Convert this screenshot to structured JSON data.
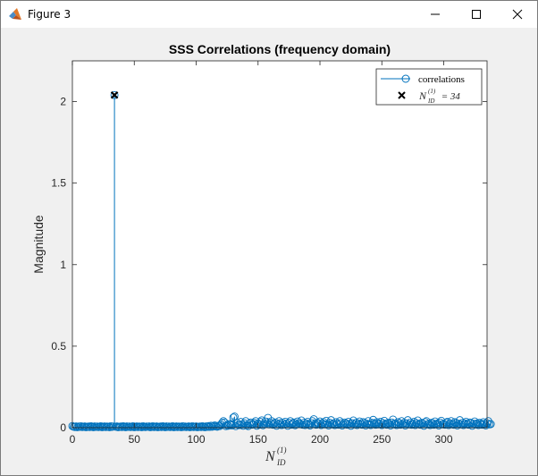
{
  "window": {
    "title": "Figure 3"
  },
  "colors": {
    "series": "#0072BD",
    "marker": "#000000",
    "axes_bg": "#ffffff",
    "figure_bg": "#f0f0f0"
  },
  "chart_data": {
    "type": "stem",
    "title": "SSS Correlations (frequency domain)",
    "ylabel": "Magnitude",
    "xlabel": {
      "base": "N",
      "sub": "ID",
      "sup": "(1)"
    },
    "xlim": [
      0,
      335
    ],
    "ylim": [
      0,
      2.25
    ],
    "xticks": [
      0,
      50,
      100,
      150,
      200,
      250,
      300
    ],
    "yticks": [
      0,
      0.5,
      1,
      1.5,
      2
    ],
    "ytick_labels": [
      "0",
      "0.5",
      "1",
      "1.5",
      "2"
    ],
    "grid": false,
    "legend_position": "top-right",
    "series": [
      {
        "name": "correlations",
        "style": "stem with open circle markers",
        "x_start": 0,
        "x_step": 1,
        "values": [
          0.01,
          0.006,
          0.004,
          0.008,
          0.003,
          0.007,
          0.005,
          0.009,
          0.004,
          0.006,
          0.008,
          0.003,
          0.005,
          0.007,
          0.004,
          0.009,
          0.006,
          0.003,
          0.008,
          0.005,
          0.007,
          0.004,
          0.006,
          0.009,
          0.003,
          0.005,
          0.008,
          0.004,
          0.007,
          0.006,
          0.003,
          0.009,
          0.005,
          0.007,
          2.04,
          0.006,
          0.008,
          0.003,
          0.005,
          0.007,
          0.004,
          0.009,
          0.006,
          0.003,
          0.008,
          0.005,
          0.007,
          0.004,
          0.006,
          0.009,
          0.003,
          0.005,
          0.008,
          0.004,
          0.007,
          0.006,
          0.003,
          0.009,
          0.005,
          0.004,
          0.007,
          0.006,
          0.008,
          0.003,
          0.005,
          0.009,
          0.004,
          0.006,
          0.008,
          0.003,
          0.005,
          0.007,
          0.004,
          0.009,
          0.006,
          0.003,
          0.008,
          0.005,
          0.007,
          0.004,
          0.006,
          0.009,
          0.003,
          0.005,
          0.008,
          0.004,
          0.007,
          0.006,
          0.003,
          0.009,
          0.005,
          0.007,
          0.004,
          0.006,
          0.008,
          0.003,
          0.005,
          0.009,
          0.004,
          0.006,
          0.008,
          0.003,
          0.005,
          0.007,
          0.004,
          0.009,
          0.006,
          0.003,
          0.008,
          0.005,
          0.01,
          0.005,
          0.012,
          0.006,
          0.009,
          0.014,
          0.008,
          0.006,
          0.012,
          0.01,
          0.018,
          0.03,
          0.04,
          0.032,
          0.01,
          0.016,
          0.012,
          0.022,
          0.018,
          0.014,
          0.062,
          0.068,
          0.01,
          0.03,
          0.018,
          0.016,
          0.035,
          0.02,
          0.012,
          0.028,
          0.04,
          0.015,
          0.01,
          0.025,
          0.032,
          0.018,
          0.022,
          0.03,
          0.04,
          0.012,
          0.026,
          0.018,
          0.035,
          0.045,
          0.015,
          0.022,
          0.038,
          0.028,
          0.06,
          0.02,
          0.03,
          0.04,
          0.018,
          0.025,
          0.032,
          0.012,
          0.022,
          0.04,
          0.028,
          0.016,
          0.03,
          0.02,
          0.036,
          0.024,
          0.012,
          0.03,
          0.04,
          0.018,
          0.026,
          0.032,
          0.015,
          0.02,
          0.038,
          0.028,
          0.022,
          0.044,
          0.018,
          0.03,
          0.016,
          0.026,
          0.036,
          0.02,
          0.014,
          0.028,
          0.04,
          0.052,
          0.022,
          0.018,
          0.03,
          0.024,
          0.038,
          0.016,
          0.026,
          0.034,
          0.02,
          0.042,
          0.022,
          0.014,
          0.03,
          0.046,
          0.02,
          0.026,
          0.016,
          0.034,
          0.024,
          0.018,
          0.04,
          0.028,
          0.014,
          0.022,
          0.032,
          0.026,
          0.018,
          0.036,
          0.024,
          0.012,
          0.028,
          0.044,
          0.02,
          0.03,
          0.016,
          0.026,
          0.038,
          0.022,
          0.018,
          0.034,
          0.028,
          0.014,
          0.024,
          0.04,
          0.022,
          0.016,
          0.03,
          0.048,
          0.026,
          0.018,
          0.034,
          0.02,
          0.024,
          0.036,
          0.016,
          0.028,
          0.042,
          0.022,
          0.018,
          0.03,
          0.026,
          0.014,
          0.032,
          0.05,
          0.02,
          0.024,
          0.016,
          0.034,
          0.028,
          0.018,
          0.04,
          0.022,
          0.03,
          0.014,
          0.026,
          0.046,
          0.02,
          0.032,
          0.018,
          0.024,
          0.036,
          0.016,
          0.028,
          0.044,
          0.022,
          0.018,
          0.03,
          0.026,
          0.012,
          0.034,
          0.04,
          0.02,
          0.024,
          0.016,
          0.03,
          0.028,
          0.018,
          0.038,
          0.022,
          0.026,
          0.014,
          0.032,
          0.042,
          0.02,
          0.024,
          0.018,
          0.03,
          0.036,
          0.016,
          0.026,
          0.04,
          0.022,
          0.018,
          0.034,
          0.028,
          0.014,
          0.024,
          0.046,
          0.02,
          0.03,
          0.016,
          0.026,
          0.036,
          0.022,
          0.018,
          0.032,
          0.028,
          0.012,
          0.024,
          0.038,
          0.02,
          0.026,
          0.016,
          0.03,
          0.022,
          0.018,
          0.034,
          0.024,
          0.014,
          0.028,
          0.04,
          0.02,
          0.022
        ]
      },
      {
        "name": "N_ID^(1) = 34",
        "legend_parts": {
          "base": "N",
          "sup": "(1)",
          "sub": "ID",
          "rest": " = 34"
        },
        "style": "black x marker",
        "x": [
          34
        ],
        "values": [
          2.04
        ]
      }
    ]
  }
}
